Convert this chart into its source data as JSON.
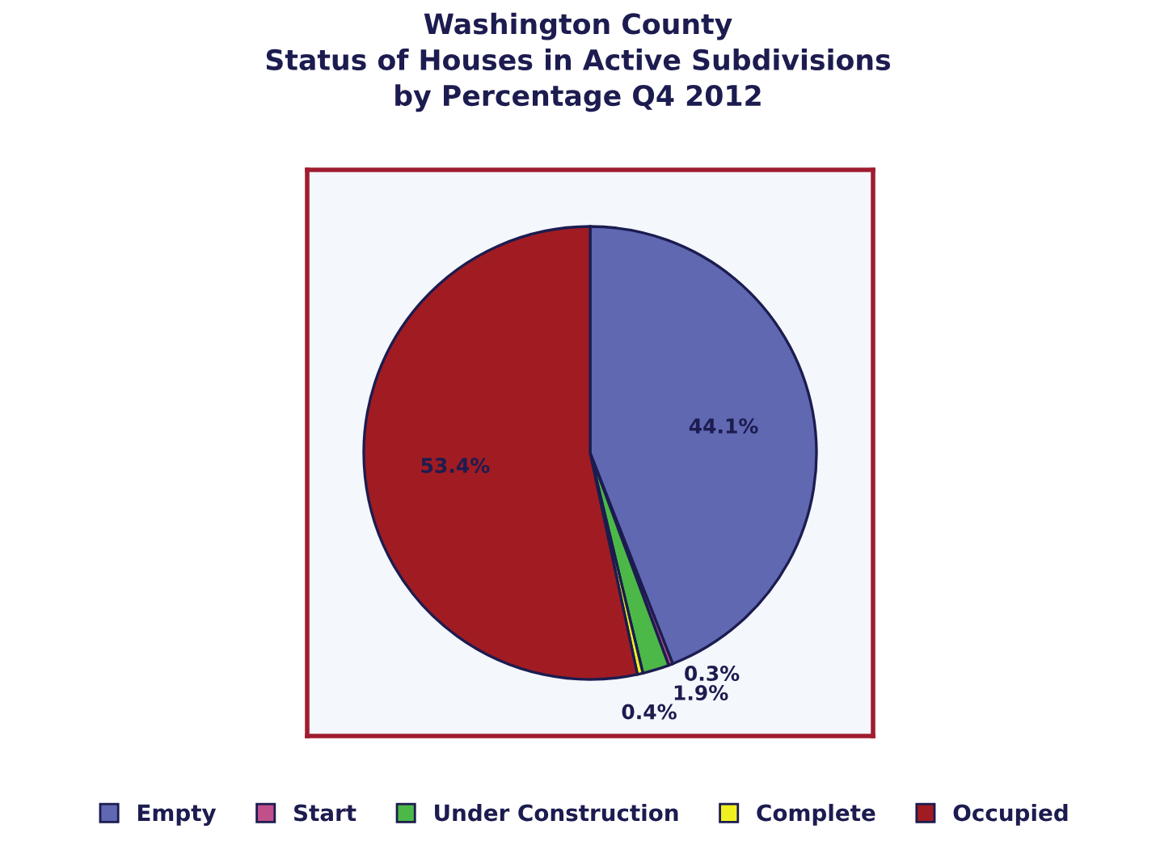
{
  "chart_data": {
    "type": "pie",
    "title": "Washington County\nStatus of Houses in Active Subdivisions\nby Percentage Q4 2012",
    "categories": [
      "Empty",
      "Start",
      "Under Construction",
      "Complete",
      "Occupied"
    ],
    "values": [
      44.1,
      0.3,
      1.9,
      0.4,
      53.4
    ],
    "colors": [
      "#6068b2",
      "#c0508c",
      "#4cb848",
      "#f0f020",
      "#a01c22"
    ],
    "value_labels": [
      "44.1%",
      "0.3%",
      "1.9%",
      "0.4%",
      "53.4%"
    ],
    "legend": "bottom"
  }
}
